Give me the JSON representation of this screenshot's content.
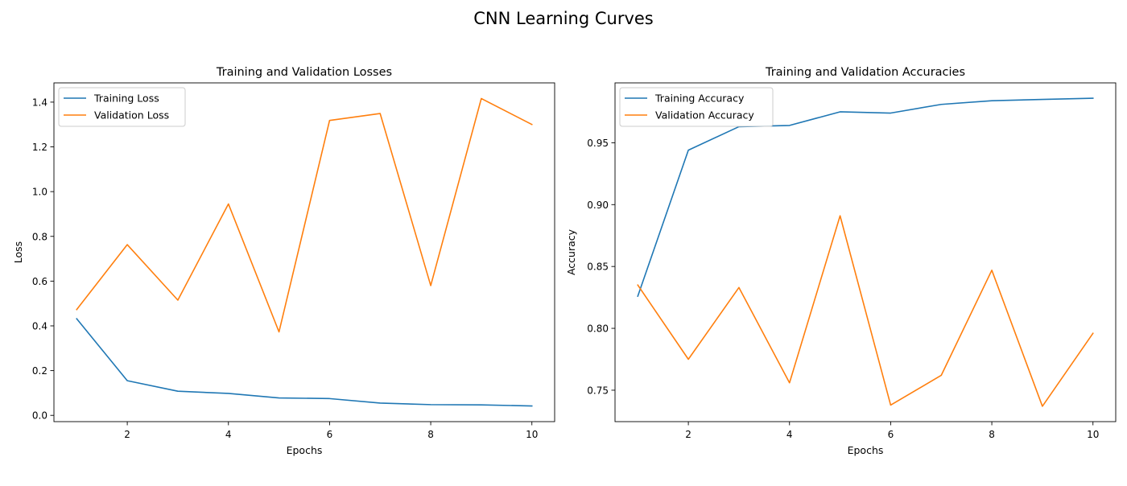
{
  "figure": {
    "suptitle": "CNN Learning Curves"
  },
  "chart_data": [
    {
      "type": "line",
      "title": "Training and Validation Losses",
      "xlabel": "Epochs",
      "ylabel": "Loss",
      "xlim": [
        0.55,
        10.45
      ],
      "ylim": [
        -0.028,
        1.486
      ],
      "xticks": [
        2,
        4,
        6,
        8,
        10
      ],
      "yticks": [
        0.0,
        0.2,
        0.4,
        0.6,
        0.8,
        1.0,
        1.2,
        1.4
      ],
      "ytick_decimals": 1,
      "grid": false,
      "legend": "upper-left",
      "x": [
        1,
        2,
        3,
        4,
        5,
        6,
        7,
        8,
        9,
        10
      ],
      "series": [
        {
          "name": "Training Loss",
          "color": "#1f77b4",
          "values": [
            0.432,
            0.155,
            0.108,
            0.098,
            0.078,
            0.075,
            0.055,
            0.048,
            0.047,
            0.042
          ]
        },
        {
          "name": "Validation Loss",
          "color": "#ff7f0e",
          "values": [
            0.473,
            0.763,
            0.515,
            0.945,
            0.373,
            1.318,
            1.349,
            0.58,
            1.416,
            1.3
          ]
        }
      ]
    },
    {
      "type": "line",
      "title": "Training and Validation Accuracies",
      "xlabel": "Epochs",
      "ylabel": "Accuracy",
      "xlim": [
        0.55,
        10.45
      ],
      "ylim": [
        0.7246,
        0.9984
      ],
      "xticks": [
        2,
        4,
        6,
        8,
        10
      ],
      "yticks": [
        0.75,
        0.8,
        0.85,
        0.9,
        0.95
      ],
      "ytick_decimals": 2,
      "grid": false,
      "legend": "upper-left",
      "x": [
        1,
        2,
        3,
        4,
        5,
        6,
        7,
        8,
        9,
        10
      ],
      "series": [
        {
          "name": "Training Accuracy",
          "color": "#1f77b4",
          "values": [
            0.826,
            0.944,
            0.963,
            0.964,
            0.975,
            0.974,
            0.981,
            0.984,
            0.985,
            0.986
          ]
        },
        {
          "name": "Validation Accuracy",
          "color": "#ff7f0e",
          "values": [
            0.835,
            0.775,
            0.833,
            0.756,
            0.891,
            0.738,
            0.762,
            0.847,
            0.737,
            0.796
          ]
        }
      ]
    }
  ]
}
